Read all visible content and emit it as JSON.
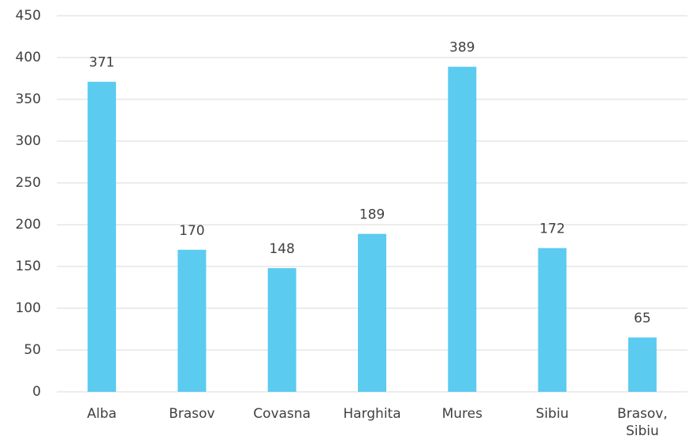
{
  "chart_data": {
    "type": "bar",
    "categories": [
      "Alba",
      "Brasov",
      "Covasna",
      "Harghita",
      "Mures",
      "Sibiu",
      "Brasov, Sibiu"
    ],
    "values": [
      371,
      170,
      148,
      189,
      389,
      172,
      65
    ],
    "color": "#5bcbf0",
    "ylim": [
      0,
      450
    ],
    "yticks": [
      0,
      50,
      100,
      150,
      200,
      250,
      300,
      350,
      400,
      450
    ],
    "grid": true
  }
}
